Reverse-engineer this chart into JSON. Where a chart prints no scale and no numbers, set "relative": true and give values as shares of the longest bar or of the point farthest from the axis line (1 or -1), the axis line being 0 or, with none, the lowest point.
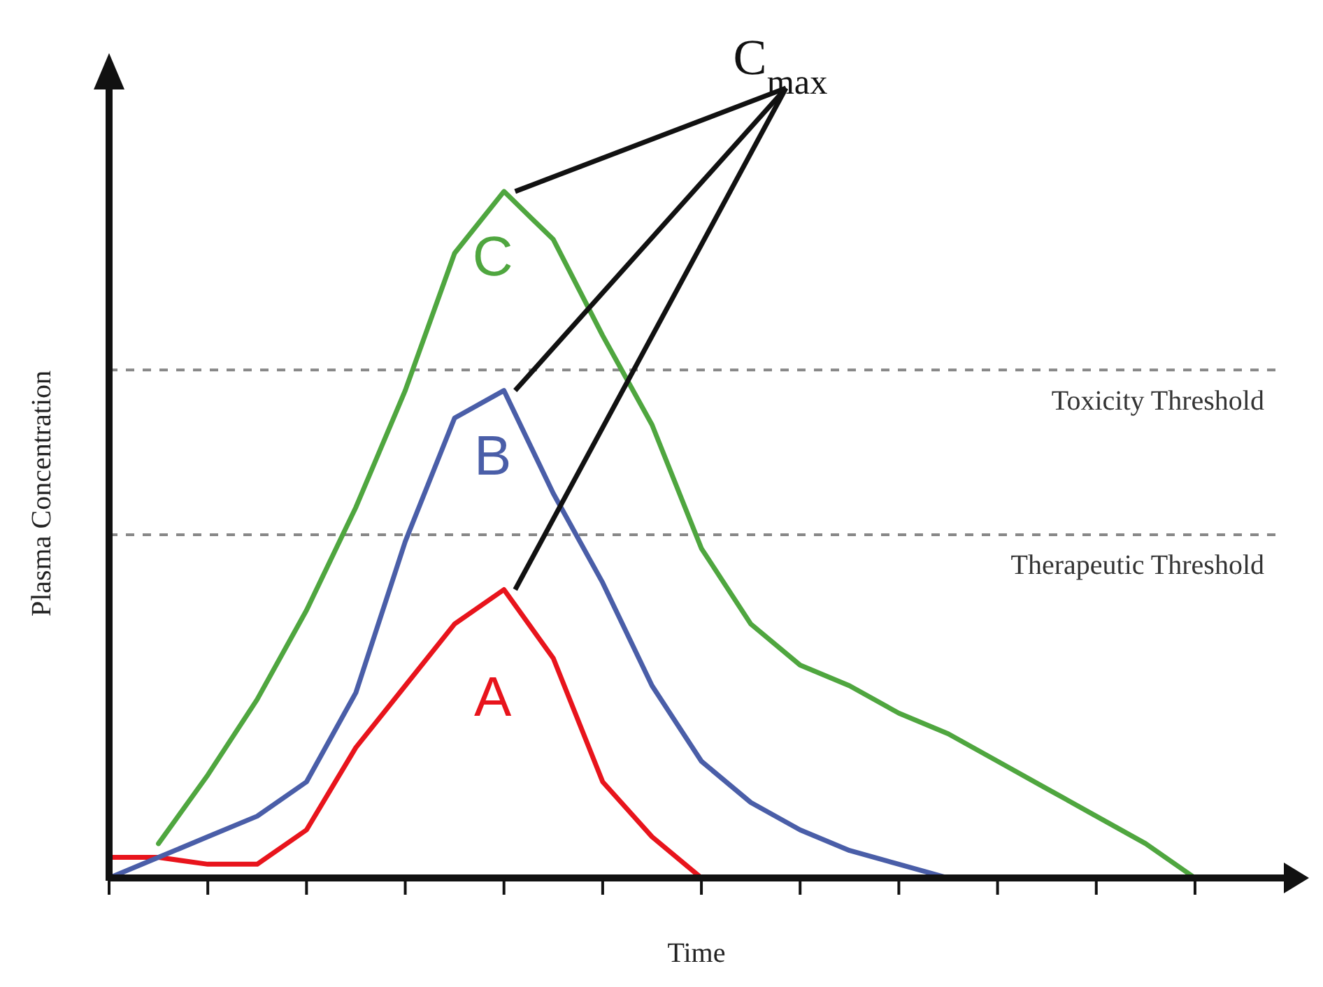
{
  "chart_data": {
    "type": "line",
    "relative": true,
    "xlabel": "Time",
    "ylabel": "Plasma Concentration",
    "annotations": [
      "C$_{max}$"
    ],
    "categories": [
      null,
      null,
      null,
      null,
      null,
      null,
      null,
      null,
      null,
      null,
      null,
      null,
      null,
      null,
      null,
      null,
      null,
      null,
      null,
      null,
      null,
      null,
      null,
      null
    ],
    "grid": false,
    "legend": false,
    "marker": "none",
    "line_style": "solid",
    "ref_lines": [
      {
        "axis": "y",
        "value": 0.74,
        "label": "Toxicity Threshold",
        "color": "#888888",
        "line_style": "dashed"
      },
      {
        "axis": "y",
        "value": 0.5,
        "label": "Therapeutic Threshold",
        "color": "#888888",
        "line_style": "dashed"
      }
    ],
    "series": [
      {
        "name": "A",
        "color": "#e8141c",
        "values": [
          0.03,
          0.03,
          0.02,
          0.02,
          0.07,
          0.19,
          0.28,
          0.37,
          0.42,
          0.32,
          0.14,
          0.06,
          0.0,
          0.0,
          null,
          null,
          null,
          null,
          null,
          null,
          null,
          null,
          null,
          null
        ]
      },
      {
        "name": "B",
        "color": "#4a5ea8",
        "values": [
          0.0,
          0.03,
          0.06,
          0.09,
          0.14,
          0.27,
          0.49,
          0.67,
          0.71,
          0.56,
          0.43,
          0.28,
          0.17,
          0.11,
          0.07,
          0.04,
          0.02,
          0.0,
          null,
          null,
          null,
          null,
          null,
          null
        ]
      },
      {
        "name": "C",
        "color": "#4fa63f",
        "values": [
          null,
          0.05,
          0.15,
          0.26,
          0.39,
          0.54,
          0.71,
          0.91,
          1.0,
          0.93,
          0.79,
          0.66,
          0.48,
          0.37,
          0.31,
          0.28,
          0.24,
          0.21,
          0.17,
          0.13,
          0.09,
          0.05,
          0.0,
          null
        ]
      }
    ]
  }
}
